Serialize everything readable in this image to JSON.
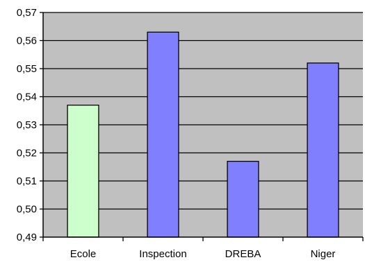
{
  "chart_data": {
    "type": "bar",
    "title": "",
    "xlabel": "",
    "ylabel": "",
    "categories": [
      "Ecole",
      "Inspection",
      "DREBA",
      "Niger"
    ],
    "values": [
      0.537,
      0.563,
      0.517,
      0.552
    ],
    "bar_colors": [
      "#ccffcc",
      "#8080ff",
      "#8080ff",
      "#8080ff"
    ],
    "ylim": [
      0.49,
      0.57
    ],
    "yticks": [
      0.49,
      0.5,
      0.51,
      0.52,
      0.53,
      0.54,
      0.55,
      0.56,
      0.57
    ],
    "ytick_labels": [
      "0,49",
      "0,50",
      "0,51",
      "0,52",
      "0,53",
      "0,54",
      "0,55",
      "0,56",
      "0,57"
    ],
    "grid": true,
    "legend": "none",
    "plot_background": "#c0c0c0"
  }
}
